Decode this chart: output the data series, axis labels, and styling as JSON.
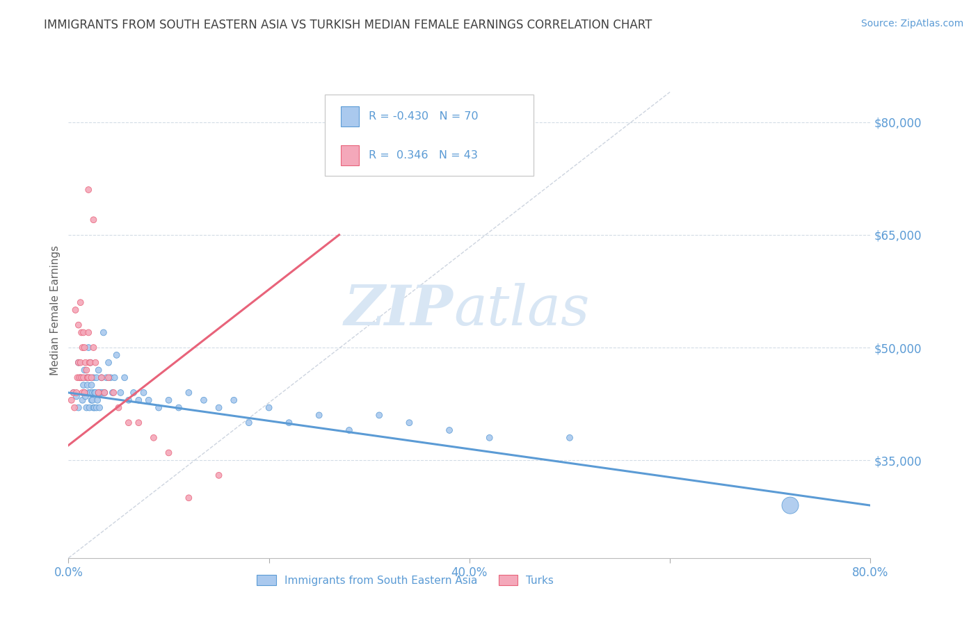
{
  "title": "IMMIGRANTS FROM SOUTH EASTERN ASIA VS TURKISH MEDIAN FEMALE EARNINGS CORRELATION CHART",
  "source": "Source: ZipAtlas.com",
  "ylabel": "Median Female Earnings",
  "xlim": [
    0.0,
    0.8
  ],
  "ylim": [
    22000,
    88000
  ],
  "yticks": [
    35000,
    50000,
    65000,
    80000
  ],
  "ytick_labels": [
    "$35,000",
    "$50,000",
    "$65,000",
    "$80,000"
  ],
  "xticks": [
    0.0,
    0.2,
    0.4,
    0.6,
    0.8
  ],
  "xtick_labels": [
    "0.0%",
    "",
    "40.0%",
    "",
    "80.0%"
  ],
  "legend_label1": "Immigrants from South Eastern Asia",
  "legend_label2": "Turks",
  "blue_color": "#aac9ee",
  "pink_color": "#f4a8ba",
  "blue_line_color": "#5b9bd5",
  "pink_line_color": "#e8637a",
  "ref_line_color": "#c8d0dc",
  "title_color": "#404040",
  "axis_label_color": "#606060",
  "tick_color": "#5b9bd5",
  "watermark_color": "#d8e6f4",
  "blue_scatter_x": [
    0.005,
    0.008,
    0.01,
    0.01,
    0.012,
    0.014,
    0.015,
    0.016,
    0.016,
    0.017,
    0.018,
    0.018,
    0.019,
    0.02,
    0.02,
    0.021,
    0.021,
    0.022,
    0.022,
    0.023,
    0.023,
    0.024,
    0.024,
    0.025,
    0.025,
    0.026,
    0.026,
    0.027,
    0.028,
    0.028,
    0.029,
    0.03,
    0.03,
    0.031,
    0.032,
    0.033,
    0.034,
    0.035,
    0.036,
    0.038,
    0.04,
    0.042,
    0.044,
    0.046,
    0.048,
    0.052,
    0.056,
    0.06,
    0.065,
    0.07,
    0.075,
    0.08,
    0.09,
    0.1,
    0.11,
    0.12,
    0.135,
    0.15,
    0.165,
    0.18,
    0.2,
    0.22,
    0.25,
    0.28,
    0.31,
    0.34,
    0.38,
    0.42,
    0.5,
    0.72
  ],
  "blue_scatter_y": [
    44000,
    43500,
    48000,
    42000,
    46000,
    43000,
    45000,
    44000,
    47000,
    43500,
    46000,
    42000,
    45000,
    50000,
    44000,
    46000,
    42000,
    44000,
    48000,
    43000,
    45000,
    43000,
    44000,
    46000,
    42000,
    44000,
    42000,
    44000,
    42000,
    46000,
    43000,
    44000,
    47000,
    42000,
    44000,
    46000,
    44000,
    52000,
    44000,
    46000,
    48000,
    46000,
    44000,
    46000,
    49000,
    44000,
    46000,
    43000,
    44000,
    43000,
    44000,
    43000,
    42000,
    43000,
    42000,
    44000,
    43000,
    42000,
    43000,
    40000,
    42000,
    40000,
    41000,
    39000,
    41000,
    40000,
    39000,
    38000,
    38000,
    29000
  ],
  "blue_scatter_sizes": [
    40,
    40,
    40,
    40,
    40,
    40,
    40,
    40,
    40,
    40,
    40,
    40,
    40,
    40,
    40,
    40,
    40,
    40,
    40,
    40,
    40,
    40,
    40,
    40,
    40,
    40,
    40,
    40,
    40,
    40,
    40,
    40,
    40,
    40,
    40,
    40,
    40,
    40,
    40,
    40,
    40,
    40,
    40,
    40,
    40,
    40,
    40,
    40,
    40,
    40,
    40,
    40,
    40,
    40,
    40,
    40,
    40,
    40,
    40,
    40,
    40,
    40,
    40,
    40,
    40,
    40,
    40,
    40,
    40,
    300
  ],
  "pink_scatter_x": [
    0.003,
    0.005,
    0.006,
    0.007,
    0.008,
    0.009,
    0.01,
    0.01,
    0.011,
    0.012,
    0.012,
    0.013,
    0.013,
    0.014,
    0.014,
    0.015,
    0.015,
    0.016,
    0.016,
    0.017,
    0.018,
    0.019,
    0.02,
    0.02,
    0.021,
    0.022,
    0.023,
    0.025,
    0.027,
    0.03,
    0.033,
    0.036,
    0.04,
    0.045,
    0.05,
    0.06,
    0.07,
    0.085,
    0.1,
    0.12,
    0.15,
    0.02,
    0.025
  ],
  "pink_scatter_y": [
    43000,
    44000,
    42000,
    55000,
    44000,
    46000,
    53000,
    48000,
    46000,
    56000,
    48000,
    52000,
    46000,
    50000,
    44000,
    52000,
    46000,
    50000,
    44000,
    48000,
    47000,
    46000,
    52000,
    46000,
    48000,
    48000,
    46000,
    50000,
    48000,
    44000,
    46000,
    44000,
    46000,
    44000,
    42000,
    40000,
    40000,
    38000,
    36000,
    30000,
    33000,
    71000,
    67000
  ],
  "pink_scatter_sizes": [
    40,
    40,
    40,
    40,
    40,
    40,
    40,
    40,
    40,
    40,
    40,
    40,
    40,
    40,
    40,
    40,
    40,
    40,
    40,
    40,
    40,
    40,
    40,
    40,
    40,
    40,
    40,
    40,
    40,
    40,
    40,
    40,
    40,
    40,
    40,
    40,
    40,
    40,
    40,
    40,
    40,
    40,
    40
  ],
  "blue_trend_x": [
    0.0,
    0.8
  ],
  "blue_trend_y": [
    44000,
    29000
  ],
  "pink_trend_x": [
    0.0,
    0.27
  ],
  "pink_trend_y": [
    37000,
    65000
  ],
  "ref_line_x": [
    0.0,
    0.6
  ],
  "ref_line_y": [
    22000,
    84000
  ]
}
